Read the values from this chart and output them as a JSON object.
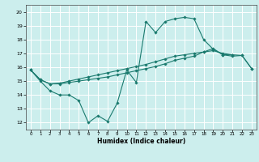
{
  "xlabel": "Humidex (Indice chaleur)",
  "background_color": "#cceeed",
  "grid_color": "#ffffff",
  "line_color": "#1a7a6e",
  "xlim": [
    -0.5,
    23.5
  ],
  "ylim": [
    11.5,
    20.5
  ],
  "yticks": [
    12,
    13,
    14,
    15,
    16,
    17,
    18,
    19,
    20
  ],
  "xticks": [
    0,
    1,
    2,
    3,
    4,
    5,
    6,
    7,
    8,
    9,
    10,
    11,
    12,
    13,
    14,
    15,
    16,
    17,
    18,
    19,
    20,
    21,
    22,
    23
  ],
  "line1_x": [
    0,
    1,
    2,
    3,
    4,
    5,
    6,
    7,
    8,
    9,
    10,
    11,
    12,
    13,
    14,
    15,
    16,
    17,
    18,
    19,
    20,
    21
  ],
  "line1_y": [
    15.8,
    15.0,
    14.3,
    14.0,
    14.0,
    13.6,
    12.0,
    12.5,
    12.1,
    13.4,
    15.8,
    14.9,
    19.3,
    18.5,
    19.3,
    19.5,
    19.6,
    19.5,
    18.0,
    17.3,
    16.9,
    16.9
  ],
  "line2_x": [
    0,
    1,
    2,
    3,
    4,
    5,
    6,
    7,
    8,
    9,
    10,
    11,
    12,
    13,
    14,
    15,
    16,
    17,
    18,
    19,
    20,
    21,
    22,
    23
  ],
  "line2_y": [
    15.8,
    15.1,
    14.8,
    14.8,
    14.9,
    15.0,
    15.1,
    15.2,
    15.3,
    15.45,
    15.6,
    15.75,
    15.9,
    16.05,
    16.25,
    16.5,
    16.65,
    16.8,
    17.1,
    17.35,
    16.9,
    16.8,
    16.85,
    15.9
  ],
  "line3_x": [
    0,
    1,
    2,
    3,
    4,
    5,
    6,
    7,
    8,
    9,
    10,
    11,
    12,
    13,
    14,
    15,
    16,
    17,
    18,
    19,
    20,
    21,
    22,
    23
  ],
  "line3_y": [
    15.8,
    15.1,
    14.8,
    14.85,
    15.0,
    15.15,
    15.3,
    15.45,
    15.6,
    15.75,
    15.9,
    16.05,
    16.2,
    16.4,
    16.6,
    16.8,
    16.9,
    17.0,
    17.1,
    17.2,
    17.0,
    16.9,
    16.85,
    15.9
  ]
}
